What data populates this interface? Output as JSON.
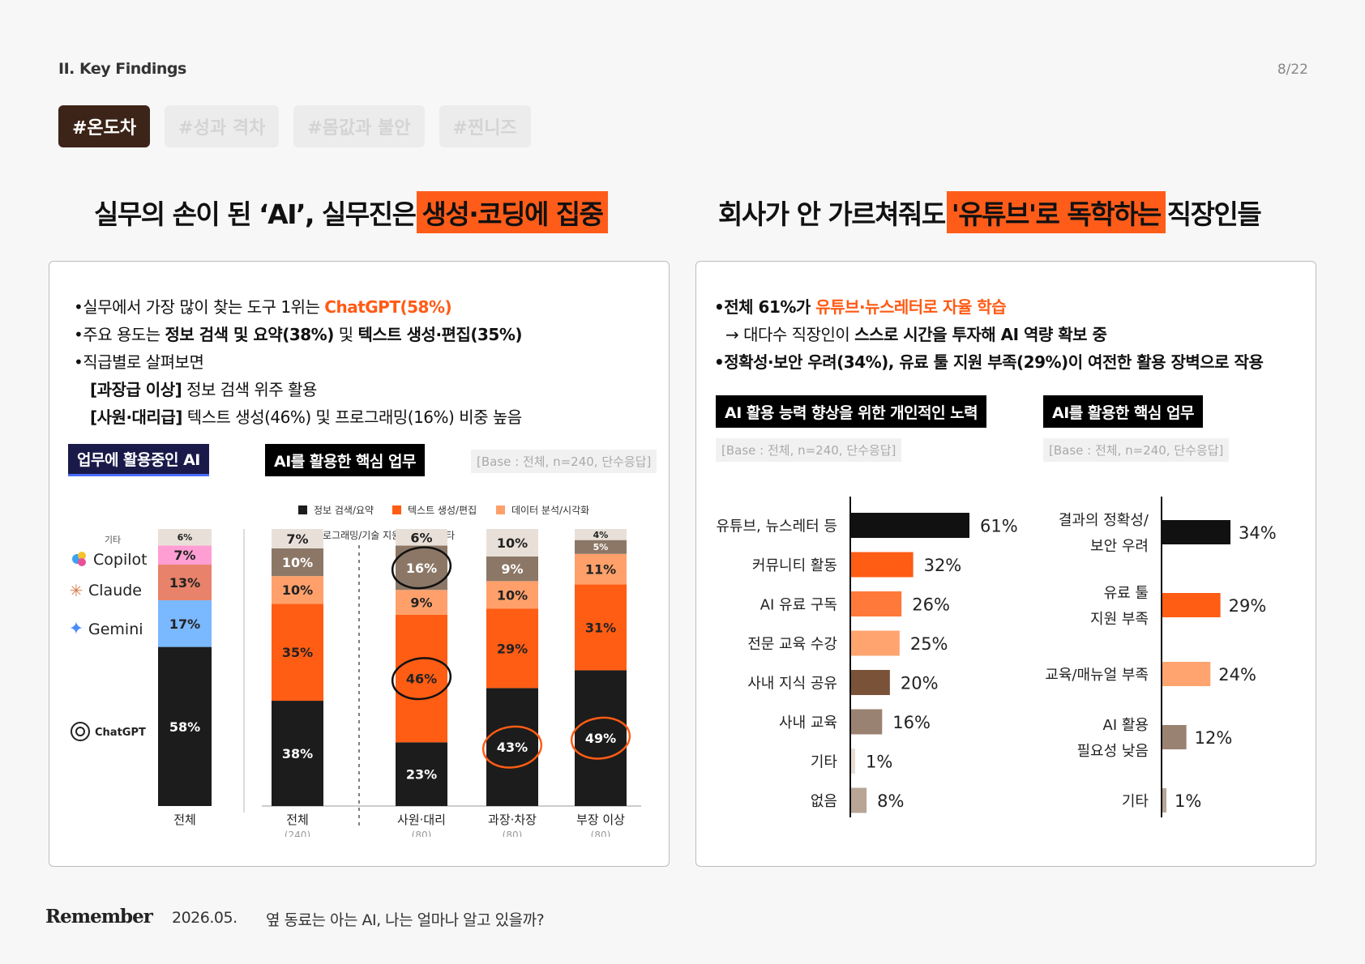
{
  "header": {
    "section": "II. Key Findings",
    "page": "8/22"
  },
  "tags": [
    "#온도차",
    "#성과 격차",
    "#몸값과 불안",
    "#찐니즈"
  ],
  "left": {
    "headline_pre": "실무의 손이 된 ‘AI’, 실무진은 ",
    "headline_hl": "생성·코딩에 집중",
    "bullets": {
      "b1_pre": "•실무에서 가장 많이 찾는 도구 1위는 ",
      "b1_hl": "ChatGPT(58%)",
      "b2_pre": "•주요 용도는 ",
      "b2_bold1": "정보 검색 및 요약(38%)",
      "b2_mid": " 및 ",
      "b2_bold2": "텍스트 생성·편집(35%)",
      "b3": "•직급별로 살펴보면",
      "b4_bold": "[과장급 이상]",
      "b4_rest": " 정보 검색 위주 활용",
      "b5_bold": "[사원·대리급]",
      "b5_rest": " 텍스트 생성(46%) 및 프로그래밍(16%) 비중 높음"
    },
    "label_ai": "업무에 활용중인 AI",
    "label_task": "AI를 활용한 핵심 업무",
    "base": "[Base : 전체, n=240, 단수응답]",
    "tools": [
      "기타",
      "Copilot",
      "Claude",
      "Gemini",
      "ChatGPT"
    ]
  },
  "right": {
    "headline_pre": "회사가 안 가르쳐줘도 ",
    "headline_hl": "'유튜브'로 독학하는",
    "headline_post": " 직장인들",
    "bullets": {
      "b1_pre": "•전체 61%가 ",
      "b1_hl": "유튜브·뉴스레터로 자율 학습",
      "b2_pre": "→ 대다수 직장인이 ",
      "b2_bold": "스스로 시간을 투자해 AI 역량 확보 중",
      "b3": "•정확성·보안 우려(34%), 유료 툴 지원 부족(29%)이 여전한 활용 장벽으로 작용"
    },
    "label_effort": "AI 활용 능력 향상을 위한 개인적인 노력",
    "label_task": "AI를 활용한 핵심 업무",
    "base1": "[Base : 전체, n=240, 단수응답]",
    "base2": "[Base : 전체, n=240, 단수응답]"
  },
  "footer": {
    "logo": "Remember",
    "date": "2026.05.",
    "subtitle": "옆 동료는 아는 AI, 나는 얼마나 알고 있을까?"
  },
  "chart_data": [
    {
      "type": "bar",
      "stacked": true,
      "categories": [
        "전체"
      ],
      "series": [
        {
          "name": "ChatGPT",
          "values": [
            58
          ],
          "color": "#1c1c1c"
        },
        {
          "name": "Gemini",
          "values": [
            17
          ],
          "color": "#7ab8ff"
        },
        {
          "name": "Claude",
          "values": [
            13
          ],
          "color": "#e8826a"
        },
        {
          "name": "Copilot",
          "values": [
            7
          ],
          "color": "#ff9ed2"
        },
        {
          "name": "기타",
          "values": [
            6
          ],
          "color": "#e8e0d8"
        }
      ]
    },
    {
      "type": "bar",
      "stacked": true,
      "categories": [
        "전체",
        "사원·대리",
        "과장·차장",
        "부장 이상"
      ],
      "category_n": [
        "(240)",
        "(80)",
        "(80)",
        "(80)"
      ],
      "legend": [
        "정보 검색/요약",
        "텍스트 생성/편집",
        "데이터 분석/시각화",
        "프로그래밍/기술 지원",
        "기타"
      ],
      "series": [
        {
          "name": "정보 검색/요약",
          "values": [
            38,
            23,
            43,
            49
          ],
          "color": "#1c1c1c"
        },
        {
          "name": "텍스트 생성/편집",
          "values": [
            35,
            46,
            29,
            31
          ],
          "color": "#ff5c14"
        },
        {
          "name": "데이터 분석/시각화",
          "values": [
            10,
            9,
            10,
            11
          ],
          "color": "#ffa06b"
        },
        {
          "name": "프로그래밍/기술 지원",
          "values": [
            10,
            16,
            9,
            5
          ],
          "color": "#8c7766"
        },
        {
          "name": "기타",
          "values": [
            7,
            6,
            10,
            4
          ],
          "color": "#e8e0d8"
        }
      ],
      "circled": [
        [
          "사원·대리",
          "텍스트 생성/편집"
        ],
        [
          "사원·대리",
          "프로그래밍/기술 지원"
        ],
        [
          "과장·차장",
          "정보 검색/요약"
        ],
        [
          "부장 이상",
          "정보 검색/요약"
        ]
      ]
    },
    {
      "type": "bar",
      "orientation": "horizontal",
      "categories": [
        "유튜브, 뉴스레터 등",
        "커뮤니티 활동",
        "AI 유료 구독",
        "전문 교육 수강",
        "사내 지식 공유",
        "사내 교육",
        "기타",
        "없음"
      ],
      "values": [
        61,
        32,
        26,
        25,
        20,
        16,
        1,
        8
      ],
      "labels": [
        "61%",
        "32%",
        "26%",
        "25%",
        "20%",
        "16%",
        "1%",
        "8%"
      ],
      "colors": [
        "#111111",
        "#ff5c14",
        "#ff7a3a",
        "#ffa46e",
        "#7a5238",
        "#9a8272",
        "#e6ddd5",
        "#b8a596"
      ]
    },
    {
      "type": "bar",
      "orientation": "horizontal",
      "categories": [
        "결과의 정확성/ 보안 우려",
        "유료 툴 지원 부족",
        "교육/매뉴얼 부족",
        "AI 활용 필요성 낮음",
        "기타"
      ],
      "category_lines": [
        [
          "결과의 정확성/",
          "보안 우려"
        ],
        [
          "유료 툴",
          "지원 부족"
        ],
        [
          "교육/매뉴얼 부족"
        ],
        [
          "AI 활용",
          "필요성 낮음"
        ],
        [
          "기타"
        ]
      ],
      "values": [
        34,
        29,
        24,
        12,
        1
      ],
      "labels": [
        "34%",
        "29%",
        "24%",
        "12%",
        "1%"
      ],
      "colors": [
        "#111111",
        "#ff5c14",
        "#ffa46e",
        "#9a8272",
        "#b8a596"
      ]
    }
  ]
}
